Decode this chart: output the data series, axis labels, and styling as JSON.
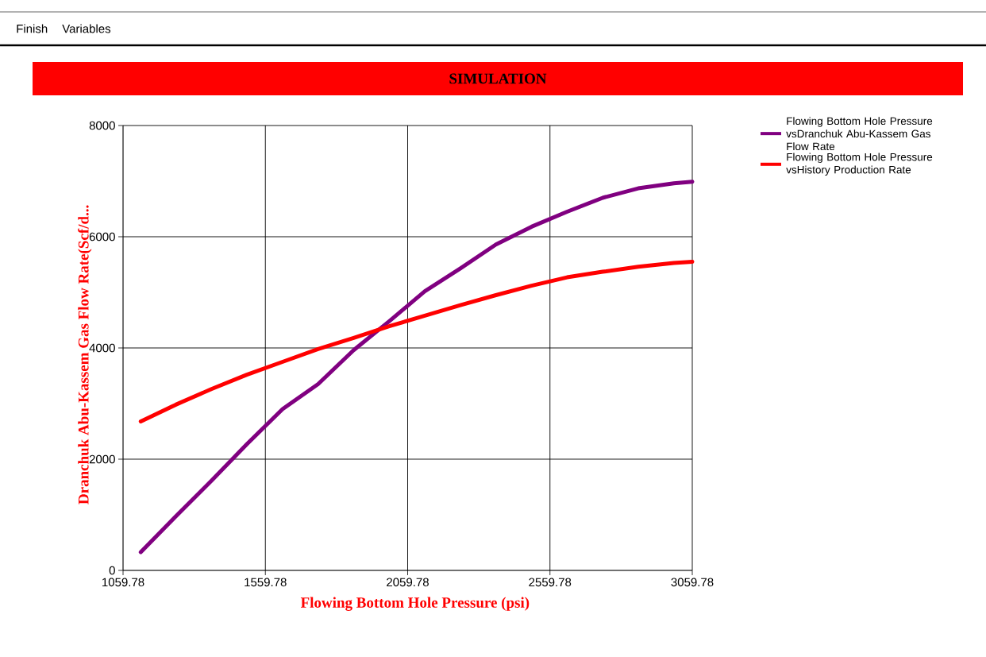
{
  "chart_data": {
    "type": "line",
    "title": "SIMULATION",
    "xlabel": "Flowing Bottom Hole Pressure (psi)",
    "ylabel": "Dranchuk Abu-Kassem Gas Flow Rate(Scf/d...",
    "annotations": [
      "Finish",
      "Variables"
    ],
    "x": [
      1122,
      1245,
      1370,
      1495,
      1620,
      1745,
      1870,
      1995,
      2120,
      2245,
      2370,
      2495,
      2620,
      2745,
      2870,
      2995,
      3059.78
    ],
    "series": [
      {
        "name": "Flowing Bottom Hole Pressure vsDranchuk Abu-Kassem Gas Flow Rate",
        "color": "#800080",
        "values": [
          330,
          970,
          1610,
          2270,
          2900,
          3350,
          3960,
          4480,
          5020,
          5430,
          5860,
          6180,
          6450,
          6700,
          6870,
          6960,
          6990
        ]
      },
      {
        "name": "Flowing Bottom Hole Pressure vsHistory Production Rate",
        "color": "#ff0000",
        "values": [
          2680,
          2980,
          3260,
          3520,
          3750,
          3980,
          4180,
          4390,
          4580,
          4770,
          4950,
          5120,
          5270,
          5370,
          5460,
          5530,
          5550
        ]
      }
    ],
    "xlim": [
      1059.78,
      3059.78
    ],
    "ylim": [
      0,
      8000
    ],
    "xticks": [
      1059.78,
      1559.78,
      2059.78,
      2559.78,
      3059.78
    ],
    "yticks": [
      0,
      2000,
      4000,
      6000,
      8000
    ],
    "grid": true,
    "legend": "right",
    "marker": "none",
    "line_style": "solid"
  }
}
